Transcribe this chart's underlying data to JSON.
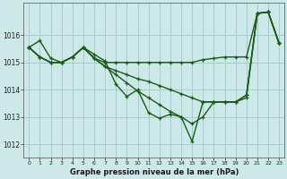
{
  "title": "Graphe pression niveau de la mer (hPa)",
  "bg_color": "#cce8e8",
  "grid_color": "#a8ccc8",
  "line_color": "#1a5c1a",
  "ylim": [
    1011.5,
    1017.2
  ],
  "xlim": [
    -0.5,
    23.5
  ],
  "yticks": [
    1012,
    1013,
    1014,
    1015,
    1016
  ],
  "xticks": [
    0,
    1,
    2,
    3,
    4,
    5,
    6,
    7,
    8,
    9,
    10,
    11,
    12,
    13,
    14,
    15,
    16,
    17,
    18,
    19,
    20,
    21,
    22,
    23
  ],
  "s1": [
    1015.55,
    1015.8,
    1015.15,
    1015.0,
    1015.2,
    1015.55,
    1015.3,
    1015.05,
    1014.2,
    1013.75,
    1014.0,
    1013.15,
    1012.95,
    1013.1,
    1013.0,
    1012.1,
    1013.55,
    1013.55,
    1013.55,
    1013.55,
    1013.7,
    1016.8,
    1016.85,
    1015.7
  ],
  "s2": [
    1015.55,
    1015.2,
    1015.0,
    1015.0,
    1015.2,
    1015.55,
    1015.15,
    1015.0,
    1015.0,
    1015.0,
    1015.0,
    1015.0,
    1015.0,
    1015.0,
    1015.0,
    1015.0,
    1015.1,
    1015.15,
    1015.2,
    1015.2,
    1015.2,
    1016.8,
    1016.85,
    1015.7
  ],
  "s3": [
    1015.55,
    1015.2,
    1015.0,
    1015.0,
    1015.2,
    1015.55,
    1015.15,
    1014.85,
    1014.7,
    1014.55,
    1014.4,
    1014.3,
    1014.15,
    1014.0,
    1013.85,
    1013.7,
    1013.55,
    1013.55,
    1013.55,
    1013.55,
    1013.8,
    1016.8,
    1016.85,
    1015.7
  ],
  "s4": [
    1015.55,
    1015.2,
    1015.0,
    1015.0,
    1015.2,
    1015.55,
    1015.15,
    1014.85,
    1014.55,
    1014.25,
    1013.95,
    1013.7,
    1013.45,
    1013.2,
    1013.0,
    1012.75,
    1013.0,
    1013.55,
    1013.55,
    1013.55,
    1013.8,
    1016.8,
    1016.85,
    1015.7
  ]
}
